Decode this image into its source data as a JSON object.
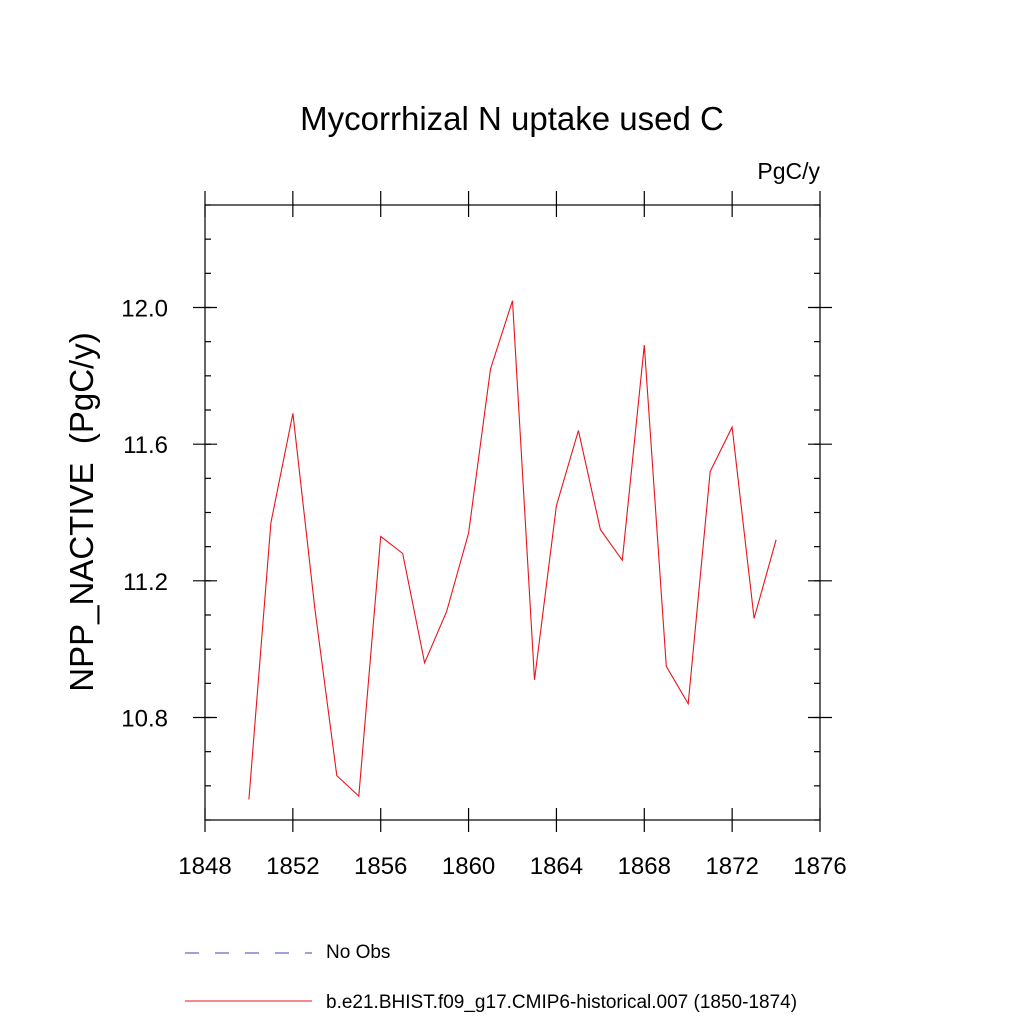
{
  "chart_data": {
    "type": "line",
    "title": "Mycorrhizal N uptake used C",
    "units": "PgC/y",
    "xlabel": "",
    "ylabel": "NPP_NACTIVE  (PgC/y)",
    "xlim": [
      1848,
      1876
    ],
    "ylim": [
      10.5,
      12.3
    ],
    "x_ticks": [
      1848,
      1852,
      1856,
      1860,
      1864,
      1868,
      1872,
      1876
    ],
    "x_tick_labels": [
      "1848",
      "1852",
      "1856",
      "1860",
      "1864",
      "1868",
      "1872",
      "1876"
    ],
    "y_ticks": [
      10.8,
      11.2,
      11.6,
      12.0
    ],
    "y_tick_labels": [
      "10.8",
      "11.2",
      "11.6",
      "12.0"
    ],
    "grid": false,
    "legend_position": "bottom",
    "series": [
      {
        "name": "b.e21.BHIST.f09_g17.CMIP6-historical.007 (1850-1874)",
        "color": "#e8141c",
        "style": "solid",
        "x": [
          1850,
          1851,
          1852,
          1853,
          1854,
          1855,
          1856,
          1857,
          1858,
          1859,
          1860,
          1861,
          1862,
          1863,
          1864,
          1865,
          1866,
          1867,
          1868,
          1869,
          1870,
          1871,
          1872,
          1873,
          1874
        ],
        "y": [
          10.56,
          11.37,
          11.69,
          11.12,
          10.63,
          10.57,
          11.33,
          11.28,
          10.96,
          11.11,
          11.34,
          11.82,
          12.02,
          10.91,
          11.42,
          11.64,
          11.35,
          11.26,
          11.89,
          10.95,
          10.84,
          11.52,
          11.65,
          11.09,
          11.32
        ]
      }
    ],
    "legend": [
      {
        "label": "No Obs",
        "color": "#4040b8",
        "style": "dashed"
      },
      {
        "label": "b.e21.BHIST.f09_g17.CMIP6-historical.007 (1850-1874)",
        "color": "#e8141c",
        "style": "solid"
      }
    ]
  }
}
